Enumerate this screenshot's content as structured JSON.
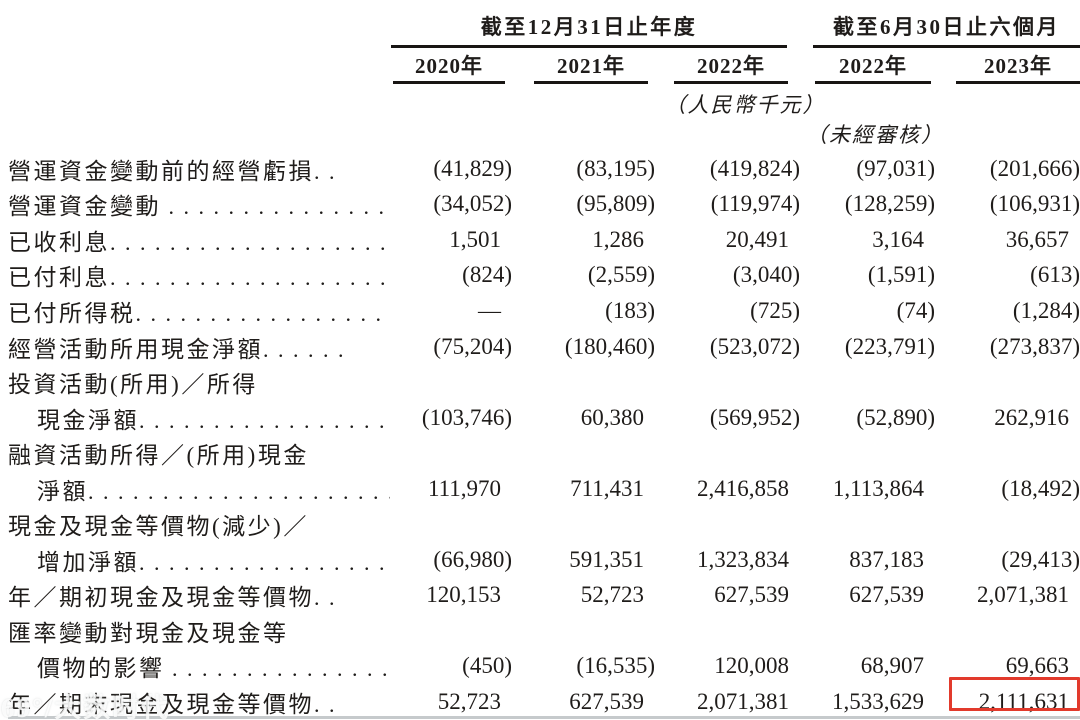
{
  "header": {
    "groups": [
      {
        "title": "截至12月31日止年度",
        "years": [
          "2020年",
          "2021年",
          "2022年"
        ]
      },
      {
        "title": "截至6月30日止六個月",
        "years": [
          "2022年",
          "2023年"
        ]
      }
    ],
    "unit_note": "（人民幣千元）",
    "audit_note": "（未經審核）"
  },
  "highlight_color": "#e23a2c",
  "watermark": {
    "text": "69°/大数时代"
  },
  "table": {
    "columns": [
      "2020年",
      "2021年",
      "2022年",
      "2022年",
      "2023年"
    ],
    "rows": [
      {
        "label": "營運資金變動前的經營虧損",
        "leader": ". .",
        "values": [
          "(41,829)",
          "(83,195)",
          "(419,824)",
          "(97,031)",
          "(201,666)"
        ]
      },
      {
        "label": "營運資金變動",
        "leader": " . . . . . . . . . . . . . . . . . . . . . .",
        "values": [
          "(34,052)",
          "(95,809)",
          "(119,974)",
          "(128,259)",
          "(106,931)"
        ]
      },
      {
        "label": "已收利息",
        "leader": ". . . . . . . . . . . . . . . . . . . . . . .",
        "values": [
          "1,501",
          "1,286",
          "20,491",
          "3,164",
          "36,657"
        ]
      },
      {
        "label": "已付利息",
        "leader": ". . . . . . . . . . . . . . . . . . . . . . .",
        "values": [
          "(824)",
          "(2,559)",
          "(3,040)",
          "(1,591)",
          "(613)"
        ]
      },
      {
        "label": "已付所得税",
        "leader": ". . . . . . . . . . . . . . . . . . . . . .",
        "values": [
          "—",
          "(183)",
          "(725)",
          "(74)",
          "(1,284)"
        ]
      },
      {
        "label": "經營活動所用現金淨額",
        "leader": ". . . . . .",
        "values": [
          "(75,204)",
          "(180,460)",
          "(523,072)",
          "(223,791)",
          "(273,837)"
        ]
      },
      {
        "label": "投資活動(所用)／所得",
        "leader": "",
        "values": [
          "",
          "",
          "",
          "",
          ""
        ]
      },
      {
        "label": "現金淨額",
        "indent": true,
        "leader": ". . . . . . . . . . . . . . . . . . . . . .",
        "values": [
          "(103,746)",
          "60,380",
          "(569,952)",
          "(52,890)",
          "262,916"
        ]
      },
      {
        "label": "融資活動所得／(所用)現金",
        "leader": "",
        "values": [
          "",
          "",
          "",
          "",
          ""
        ]
      },
      {
        "label": "淨額",
        "indent": true,
        "leader": ". . . . . . . . . . . . . . . . . . . . . . .",
        "values": [
          "111,970",
          "711,431",
          "2,416,858",
          "1,113,864",
          "(18,492)"
        ]
      },
      {
        "label": "現金及現金等價物(減少)／",
        "leader": "",
        "values": [
          "",
          "",
          "",
          "",
          ""
        ]
      },
      {
        "label": "增加淨額",
        "indent": true,
        "leader": ". . . . . . . . . . . . . . . . . . . . . .",
        "values": [
          "(66,980)",
          "591,351",
          "1,323,834",
          "837,183",
          "(29,413)"
        ]
      },
      {
        "label": "年／期初現金及現金等價物",
        "leader": ". .",
        "values": [
          "120,153",
          "52,723",
          "627,539",
          "627,539",
          "2,071,381"
        ]
      },
      {
        "label": "匯率變動對現金及現金等",
        "leader": "",
        "values": [
          "",
          "",
          "",
          "",
          ""
        ]
      },
      {
        "label": "價物的影響",
        "indent": true,
        "leader": " . . . . . . . . . . . . . . . . . . . . .",
        "values": [
          "(450)",
          "(16,535)",
          "120,008",
          "68,907",
          "69,663"
        ]
      },
      {
        "label": "年／期末現金及現金等價物",
        "leader": ". .",
        "values": [
          "52,723",
          "627,539",
          "2,071,381",
          "1,533,629",
          "2,111,631"
        ],
        "highlight_col": 4
      }
    ]
  }
}
